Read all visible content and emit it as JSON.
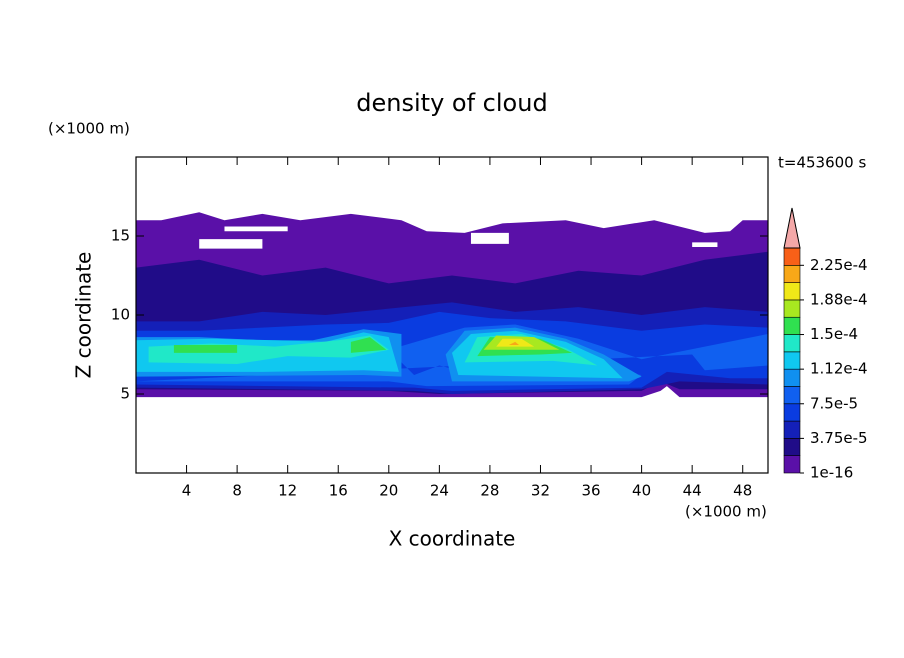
{
  "chart_data": {
    "type": "contour",
    "title": "density of cloud",
    "x_label": "X coordinate",
    "y_label": "Z coordinate",
    "x_unit": "(×1000 m)",
    "y_unit": "(×1000 m)",
    "time_label": "t=453600 s",
    "xlim": [
      0,
      50
    ],
    "ylim": [
      0,
      20
    ],
    "xticks": [
      4,
      8,
      12,
      16,
      20,
      24,
      28,
      32,
      36,
      40,
      44,
      48
    ],
    "yticks": [
      5,
      10,
      15
    ],
    "levels": [
      1e-16,
      1.875e-05,
      3.75e-05,
      5.625e-05,
      7.5e-05,
      9.375e-05,
      0.0001125,
      0.00013125,
      0.00015,
      0.00016875,
      0.0001875,
      0.00020625,
      0.000225
    ],
    "colors": [
      "#5a10a8",
      "#200c88",
      "#1420b8",
      "#0a3ce0",
      "#1060f0",
      "#1090f0",
      "#10c8f0",
      "#20e8c8",
      "#30e050",
      "#a8e820",
      "#f0e818",
      "#f8a818",
      "#f86018"
    ],
    "extend_color": "#f4a8a8",
    "colorbar_top": 0.00024375,
    "colorbar_ticks": [
      {
        "value": 1e-16,
        "label": "1e-16"
      },
      {
        "value": 3.75e-05,
        "label": "3.75e-5"
      },
      {
        "value": 7.5e-05,
        "label": "7.5e-5"
      },
      {
        "value": 0.0001125,
        "label": "1.12e-4"
      },
      {
        "value": 0.00015,
        "label": "1.5e-4"
      },
      {
        "value": 0.0001875,
        "label": "1.88e-4"
      },
      {
        "value": 0.000225,
        "label": "2.25e-4"
      }
    ]
  }
}
